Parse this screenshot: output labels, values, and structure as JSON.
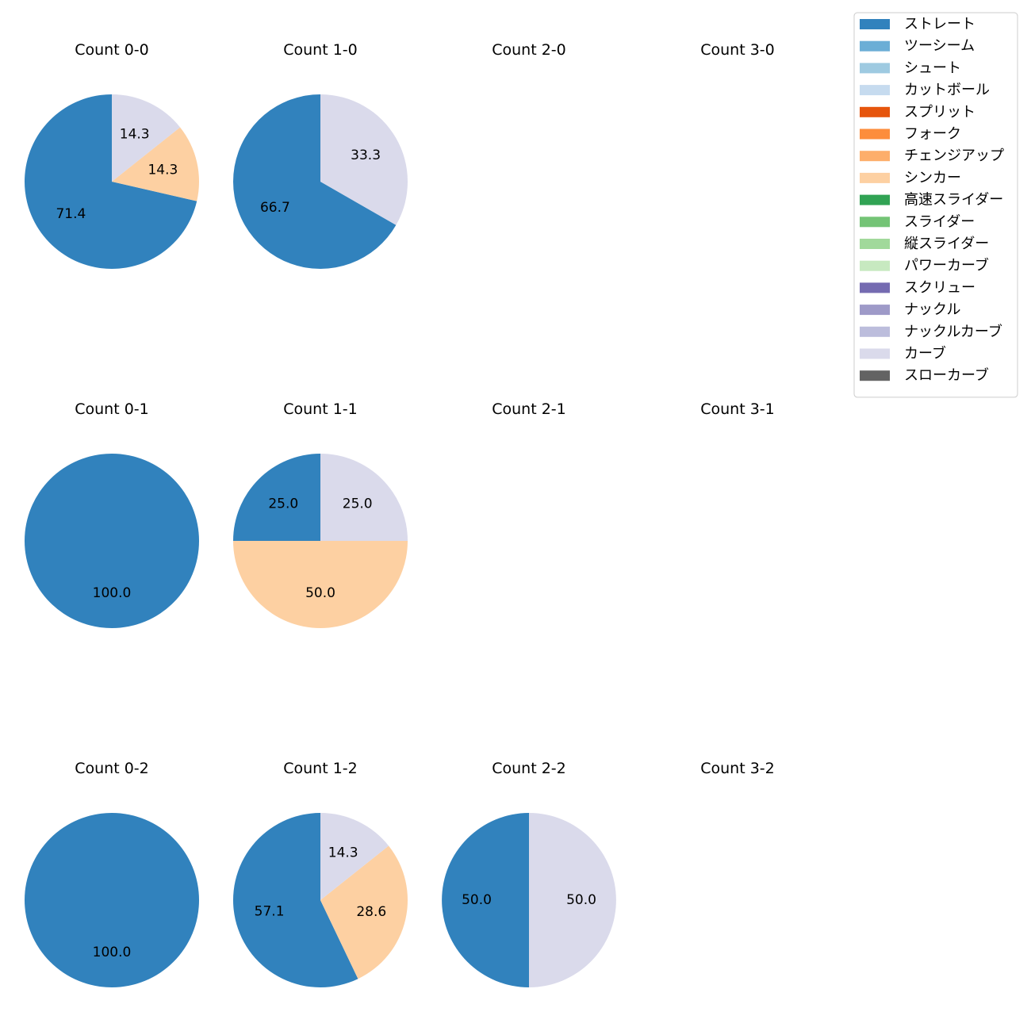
{
  "chart_data": {
    "type": "pie",
    "legend": [
      {
        "name": "ストレート",
        "color": "#3182bd"
      },
      {
        "name": "ツーシーム",
        "color": "#6baed6"
      },
      {
        "name": "シュート",
        "color": "#9ecae1"
      },
      {
        "name": "カットボール",
        "color": "#c6dbef"
      },
      {
        "name": "スプリット",
        "color": "#e6550d"
      },
      {
        "name": "フォーク",
        "color": "#fd8d3c"
      },
      {
        "name": "チェンジアップ",
        "color": "#fdae6b"
      },
      {
        "name": "シンカー",
        "color": "#fdd0a2"
      },
      {
        "name": "高速スライダー",
        "color": "#31a354"
      },
      {
        "name": "スライダー",
        "color": "#74c476"
      },
      {
        "name": "縦スライダー",
        "color": "#a1d99b"
      },
      {
        "name": "パワーカーブ",
        "color": "#c7e9c0"
      },
      {
        "name": "スクリュー",
        "color": "#756bb1"
      },
      {
        "name": "ナックル",
        "color": "#9e9ac8"
      },
      {
        "name": "ナックルカーブ",
        "color": "#bcbddc"
      },
      {
        "name": "カーブ",
        "color": "#dadaeb"
      },
      {
        "name": "スローカーブ",
        "color": "#636363"
      }
    ],
    "panels": [
      {
        "title": "Count 0-0",
        "slices": [
          {
            "pitch": "ストレート",
            "value": 71.4
          },
          {
            "pitch": "シンカー",
            "value": 14.3
          },
          {
            "pitch": "カーブ",
            "value": 14.3
          }
        ]
      },
      {
        "title": "Count 1-0",
        "slices": [
          {
            "pitch": "ストレート",
            "value": 66.7
          },
          {
            "pitch": "カーブ",
            "value": 33.3
          }
        ]
      },
      {
        "title": "Count 2-0",
        "slices": []
      },
      {
        "title": "Count 3-0",
        "slices": []
      },
      {
        "title": "Count 0-1",
        "slices": [
          {
            "pitch": "ストレート",
            "value": 100.0
          }
        ]
      },
      {
        "title": "Count 1-1",
        "slices": [
          {
            "pitch": "ストレート",
            "value": 25.0
          },
          {
            "pitch": "シンカー",
            "value": 50.0
          },
          {
            "pitch": "カーブ",
            "value": 25.0
          }
        ]
      },
      {
        "title": "Count 2-1",
        "slices": []
      },
      {
        "title": "Count 3-1",
        "slices": []
      },
      {
        "title": "Count 0-2",
        "slices": [
          {
            "pitch": "ストレート",
            "value": 100.0
          }
        ]
      },
      {
        "title": "Count 1-2",
        "slices": [
          {
            "pitch": "ストレート",
            "value": 57.1
          },
          {
            "pitch": "シンカー",
            "value": 28.6
          },
          {
            "pitch": "カーブ",
            "value": 14.3
          }
        ]
      },
      {
        "title": "Count 2-2",
        "slices": [
          {
            "pitch": "ストレート",
            "value": 50.0
          },
          {
            "pitch": "カーブ",
            "value": 50.0
          }
        ]
      },
      {
        "title": "Count 3-2",
        "slices": []
      }
    ]
  }
}
